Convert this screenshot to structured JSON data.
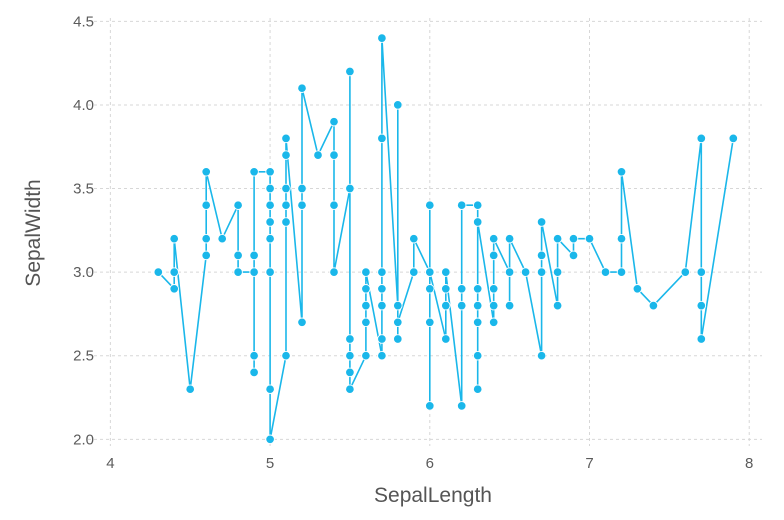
{
  "chart_data": {
    "type": "line",
    "title": "",
    "xlabel": "SepalLength",
    "ylabel": "SepalWidth",
    "xlim": [
      3.86,
      8.08
    ],
    "ylim": [
      1.96,
      4.52
    ],
    "grid": true,
    "xticks": [
      4,
      5,
      6,
      7,
      8
    ],
    "yticks": [
      2.0,
      2.5,
      3.0,
      3.5,
      4.0,
      4.5
    ],
    "xtick_labels": [
      "4",
      "5",
      "6",
      "7",
      "8"
    ],
    "ytick_labels": [
      "2.0",
      "2.5",
      "3.0",
      "3.5",
      "4.0",
      "4.5"
    ],
    "colors": {
      "series": "#1ab7ea"
    },
    "series": [
      {
        "points": [
          [
            4.3,
            3.0
          ],
          [
            4.4,
            2.9
          ],
          [
            4.4,
            3.0
          ],
          [
            4.4,
            3.2
          ],
          [
            4.5,
            2.3
          ],
          [
            4.6,
            3.1
          ],
          [
            4.6,
            3.2
          ],
          [
            4.6,
            3.4
          ],
          [
            4.6,
            3.6
          ],
          [
            4.7,
            3.2
          ],
          [
            4.8,
            3.4
          ],
          [
            4.8,
            3.1
          ],
          [
            4.8,
            3.0
          ],
          [
            4.9,
            3.0
          ],
          [
            4.9,
            2.4
          ],
          [
            4.9,
            2.5
          ],
          [
            4.9,
            3.1
          ],
          [
            4.9,
            3.6
          ],
          [
            5.0,
            3.6
          ],
          [
            5.0,
            3.4
          ],
          [
            5.0,
            3.5
          ],
          [
            5.0,
            3.3
          ],
          [
            5.0,
            3.2
          ],
          [
            5.0,
            3.0
          ],
          [
            5.0,
            2.3
          ],
          [
            5.0,
            2.0
          ],
          [
            5.1,
            2.5
          ],
          [
            5.1,
            3.3
          ],
          [
            5.1,
            3.4
          ],
          [
            5.1,
            3.5
          ],
          [
            5.1,
            3.7
          ],
          [
            5.1,
            3.8
          ],
          [
            5.2,
            2.7
          ],
          [
            5.2,
            3.4
          ],
          [
            5.2,
            3.5
          ],
          [
            5.2,
            4.1
          ],
          [
            5.3,
            3.7
          ],
          [
            5.4,
            3.9
          ],
          [
            5.4,
            3.7
          ],
          [
            5.4,
            3.4
          ],
          [
            5.4,
            3.0
          ],
          [
            5.5,
            3.5
          ],
          [
            5.5,
            4.2
          ],
          [
            5.5,
            2.6
          ],
          [
            5.5,
            2.5
          ],
          [
            5.5,
            2.4
          ],
          [
            5.5,
            2.3
          ],
          [
            5.6,
            2.5
          ],
          [
            5.6,
            2.7
          ],
          [
            5.6,
            2.8
          ],
          [
            5.6,
            2.9
          ],
          [
            5.6,
            3.0
          ],
          [
            5.7,
            2.5
          ],
          [
            5.7,
            2.6
          ],
          [
            5.7,
            2.8
          ],
          [
            5.7,
            2.9
          ],
          [
            5.7,
            3.0
          ],
          [
            5.7,
            3.8
          ],
          [
            5.7,
            4.4
          ],
          [
            5.8,
            2.8
          ],
          [
            5.8,
            4.0
          ],
          [
            5.8,
            2.6
          ],
          [
            5.8,
            2.7
          ],
          [
            5.9,
            3.0
          ],
          [
            5.9,
            3.2
          ],
          [
            6.0,
            3.0
          ],
          [
            6.0,
            3.4
          ],
          [
            6.0,
            2.2
          ],
          [
            6.0,
            2.7
          ],
          [
            6.0,
            2.9
          ],
          [
            6.0,
            3.0
          ],
          [
            6.1,
            2.6
          ],
          [
            6.1,
            2.8
          ],
          [
            6.1,
            2.9
          ],
          [
            6.1,
            3.0
          ],
          [
            6.2,
            2.2
          ],
          [
            6.2,
            2.8
          ],
          [
            6.2,
            2.9
          ],
          [
            6.2,
            3.4
          ],
          [
            6.3,
            3.4
          ],
          [
            6.3,
            2.3
          ],
          [
            6.3,
            2.5
          ],
          [
            6.3,
            2.7
          ],
          [
            6.3,
            2.8
          ],
          [
            6.3,
            2.9
          ],
          [
            6.3,
            3.3
          ],
          [
            6.4,
            2.7
          ],
          [
            6.4,
            2.8
          ],
          [
            6.4,
            2.9
          ],
          [
            6.4,
            3.1
          ],
          [
            6.4,
            3.2
          ],
          [
            6.5,
            3.0
          ],
          [
            6.5,
            2.8
          ],
          [
            6.5,
            3.2
          ],
          [
            6.6,
            3.0
          ],
          [
            6.7,
            2.5
          ],
          [
            6.7,
            3.0
          ],
          [
            6.7,
            3.1
          ],
          [
            6.7,
            3.3
          ],
          [
            6.8,
            2.8
          ],
          [
            6.8,
            3.0
          ],
          [
            6.8,
            3.2
          ],
          [
            6.9,
            3.1
          ],
          [
            6.9,
            3.2
          ],
          [
            7.0,
            3.2
          ],
          [
            7.1,
            3.0
          ],
          [
            7.2,
            3.0
          ],
          [
            7.2,
            3.2
          ],
          [
            7.2,
            3.6
          ],
          [
            7.3,
            2.9
          ],
          [
            7.4,
            2.8
          ],
          [
            7.6,
            3.0
          ],
          [
            7.7,
            3.8
          ],
          [
            7.7,
            3.0
          ],
          [
            7.7,
            2.8
          ],
          [
            7.7,
            2.6
          ],
          [
            7.9,
            3.8
          ]
        ]
      }
    ]
  }
}
